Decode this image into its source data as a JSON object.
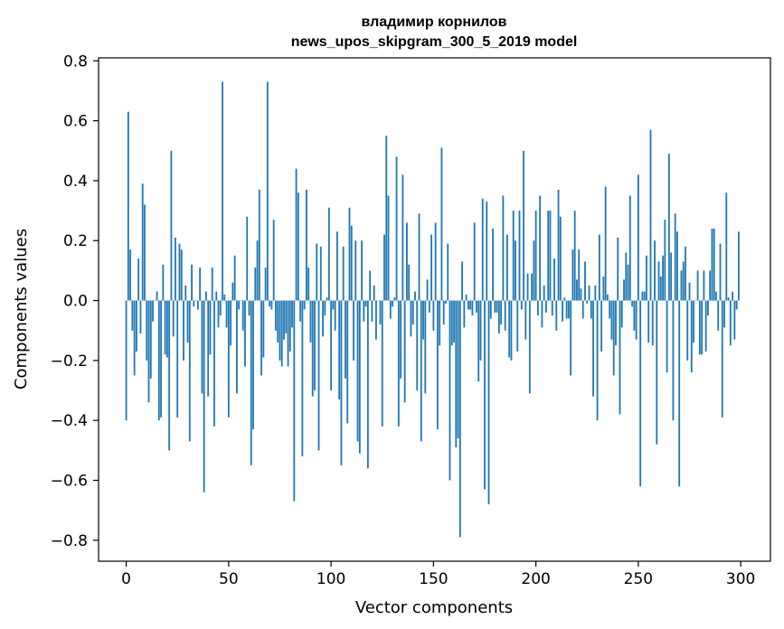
{
  "chart_data": {
    "type": "bar",
    "title": "владимир корнилов",
    "subtitle": "news_upos_skipgram_300_5_2019 model",
    "xlabel": "Vector components",
    "ylabel": "Components values",
    "xlim": [
      -13.5,
      314.5
    ],
    "ylim": [
      -0.87,
      0.81
    ],
    "xticks": [
      0,
      50,
      100,
      150,
      200,
      250,
      300
    ],
    "yticks": [
      -0.8,
      -0.6,
      -0.4,
      -0.2,
      0.0,
      0.2,
      0.4,
      0.6,
      0.8
    ],
    "ytick_labels": [
      "−0.8",
      "−0.6",
      "−0.4",
      "−0.2",
      "0.0",
      "0.2",
      "0.4",
      "0.6",
      "0.8"
    ],
    "bar_color": "#1f77b4",
    "grid": false,
    "x": "0..299",
    "values": [
      -0.4,
      0.63,
      0.17,
      -0.1,
      -0.25,
      -0.17,
      0.14,
      -0.11,
      0.39,
      0.32,
      -0.2,
      -0.34,
      -0.26,
      -0.07,
      0.0,
      0.03,
      -0.4,
      -0.39,
      0.12,
      -0.18,
      -0.19,
      -0.5,
      0.5,
      -0.12,
      0.21,
      -0.39,
      0.19,
      0.17,
      -0.2,
      0.05,
      -0.14,
      -0.47,
      0.12,
      -0.02,
      0.0,
      -0.03,
      0.11,
      -0.31,
      -0.64,
      0.03,
      -0.32,
      -0.18,
      0.11,
      -0.42,
      0.03,
      -0.09,
      -0.05,
      0.73,
      0.02,
      -0.09,
      -0.39,
      -0.15,
      0.06,
      0.15,
      -0.31,
      -0.03,
      0.0,
      -0.1,
      -0.22,
      0.28,
      -0.05,
      -0.55,
      -0.43,
      0.11,
      0.2,
      0.37,
      -0.25,
      -0.19,
      0.11,
      0.73,
      -0.02,
      -0.03,
      0.27,
      -0.1,
      -0.14,
      -0.2,
      -0.22,
      -0.13,
      -0.11,
      -0.22,
      -0.17,
      -0.09,
      -0.67,
      0.44,
      0.36,
      -0.07,
      -0.52,
      -0.03,
      0.37,
      0.11,
      -0.14,
      -0.32,
      -0.3,
      0.19,
      -0.5,
      0.18,
      -0.12,
      -0.05,
      0.01,
      0.31,
      -0.3,
      -0.03,
      -0.1,
      0.23,
      -0.33,
      -0.55,
      0.18,
      -0.26,
      -0.41,
      0.31,
      0.25,
      -0.2,
      0.2,
      -0.47,
      -0.51,
      0.2,
      -0.07,
      -0.02,
      -0.56,
      0.1,
      -0.07,
      0.05,
      -0.13,
      0.0,
      -0.08,
      -0.42,
      0.22,
      0.55,
      0.35,
      -0.06,
      -0.02,
      0.01,
      0.48,
      -0.42,
      -0.26,
      0.42,
      -0.34,
      0.26,
      0.12,
      -0.12,
      -0.08,
      0.03,
      -0.3,
      0.29,
      -0.47,
      -0.13,
      -0.31,
      0.07,
      -0.04,
      0.22,
      -0.1,
      0.26,
      -0.43,
      -0.15,
      0.51,
      -0.08,
      -0.01,
      0.19,
      -0.6,
      -0.15,
      -0.14,
      -0.49,
      -0.46,
      -0.79,
      0.13,
      -0.09,
      0.02,
      -0.03,
      -0.03,
      -0.05,
      0.26,
      -0.04,
      -0.27,
      -0.2,
      0.34,
      -0.63,
      0.33,
      -0.68,
      -0.06,
      0.24,
      -0.04,
      -0.04,
      -0.11,
      -0.08,
      0.35,
      -0.1,
      0.22,
      -0.19,
      -0.2,
      0.3,
      0.2,
      -0.17,
      0.3,
      -0.03,
      0.5,
      -0.13,
      0.09,
      -0.31,
      0.09,
      0.2,
      0.3,
      -0.05,
      0.35,
      -0.09,
      0.05,
      -0.04,
      0.3,
      0.3,
      -0.05,
      0.14,
      -0.1,
      0.37,
      0.28,
      -0.07,
      0.01,
      -0.06,
      -0.06,
      -0.25,
      0.17,
      0.3,
      0.07,
      0.17,
      0.04,
      -0.06,
      0.13,
      -0.01,
      0.05,
      -0.06,
      -0.32,
      0.05,
      -0.4,
      0.22,
      -0.17,
      0.08,
      0.38,
      0.02,
      -0.06,
      -0.13,
      -0.25,
      -0.15,
      0.21,
      -0.38,
      -0.09,
      0.07,
      0.16,
      0.12,
      0.35,
      -0.02,
      -0.1,
      -0.13,
      0.42,
      -0.62,
      0.03,
      0.03,
      0.15,
      -0.14,
      0.57,
      -0.15,
      0.2,
      -0.48,
      0.13,
      0.08,
      0.15,
      0.27,
      -0.24,
      0.49,
      0.16,
      -0.4,
      0.29,
      0.23,
      -0.62,
      0.1,
      0.13,
      0.18,
      -0.2,
      0.06,
      -0.24,
      -0.14,
      0.0,
      0.1,
      -0.18,
      -0.18,
      0.1,
      -0.17,
      -0.05,
      0.1,
      0.24,
      0.24,
      0.03,
      -0.1,
      0.19,
      -0.39,
      -0.09,
      0.36,
      0.01,
      -0.15,
      0.03,
      -0.13,
      -0.03,
      0.23
    ]
  }
}
